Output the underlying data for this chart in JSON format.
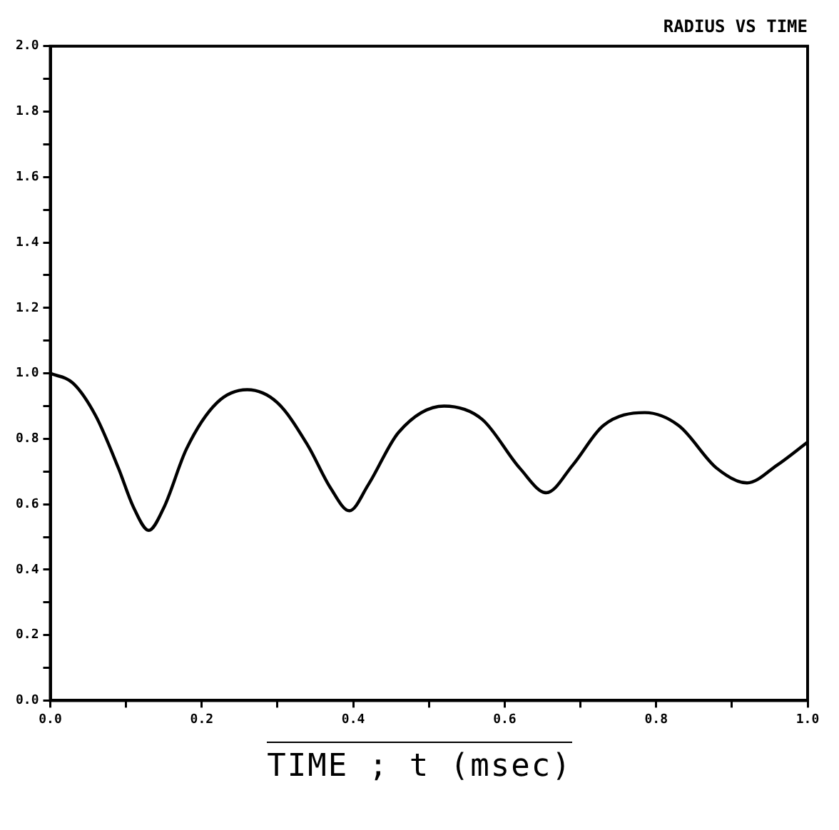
{
  "chart_data": {
    "type": "line",
    "title": "RADIUS VS TIME",
    "xlabel": "TIME ; t (msec)",
    "x": [
      0,
      0.03,
      0.06,
      0.09,
      0.11,
      0.13,
      0.15,
      0.18,
      0.22,
      0.26,
      0.3,
      0.34,
      0.37,
      0.395,
      0.42,
      0.46,
      0.52,
      0.57,
      0.62,
      0.655,
      0.69,
      0.73,
      0.785,
      0.83,
      0.88,
      0.92,
      0.96,
      1.0
    ],
    "series": [
      {
        "color": "#000000",
        "values": [
          1.0,
          0.97,
          0.87,
          0.71,
          0.59,
          0.52,
          0.59,
          0.77,
          0.91,
          0.95,
          0.91,
          0.78,
          0.65,
          0.58,
          0.66,
          0.82,
          0.9,
          0.86,
          0.71,
          0.635,
          0.72,
          0.84,
          0.88,
          0.84,
          0.71,
          0.665,
          0.72,
          0.79
        ]
      }
    ],
    "xlim": [
      0,
      1
    ],
    "ylim": [
      0,
      2
    ],
    "xticks": [
      {
        "value": 0,
        "label": "0.0"
      },
      {
        "value": 0.1,
        "label": null
      },
      {
        "value": 0.2,
        "label": "0.2"
      },
      {
        "value": 0.3,
        "label": null
      },
      {
        "value": 0.4,
        "label": "0.4"
      },
      {
        "value": 0.5,
        "label": null
      },
      {
        "value": 0.6,
        "label": "0.6"
      },
      {
        "value": 0.7,
        "label": null
      },
      {
        "value": 0.8,
        "label": "0.8"
      },
      {
        "value": 0.9,
        "label": null
      },
      {
        "value": 1.0,
        "label": "1.0"
      }
    ],
    "yticks": [
      {
        "value": 0,
        "label": "0.0"
      },
      {
        "value": 0.1,
        "label": null
      },
      {
        "value": 0.2,
        "label": "0.2"
      },
      {
        "value": 0.3,
        "label": null
      },
      {
        "value": 0.4,
        "label": "0.4"
      },
      {
        "value": 0.5,
        "label": null
      },
      {
        "value": 0.6,
        "label": "0.6"
      },
      {
        "value": 0.7,
        "label": null
      },
      {
        "value": 0.8,
        "label": "0.8"
      },
      {
        "value": 0.9,
        "label": null
      },
      {
        "value": 1.0,
        "label": "1.0"
      },
      {
        "value": 1.1,
        "label": null
      },
      {
        "value": 1.2,
        "label": "1.2"
      },
      {
        "value": 1.3,
        "label": null
      },
      {
        "value": 1.4,
        "label": "1.4"
      },
      {
        "value": 1.5,
        "label": null
      },
      {
        "value": 1.6,
        "label": "1.6"
      },
      {
        "value": 1.7,
        "label": null
      },
      {
        "value": 1.8,
        "label": "1.8"
      },
      {
        "value": 1.9,
        "label": null
      },
      {
        "value": 2.0,
        "label": "2.0"
      }
    ],
    "marker": "none",
    "line_style": "solid"
  }
}
